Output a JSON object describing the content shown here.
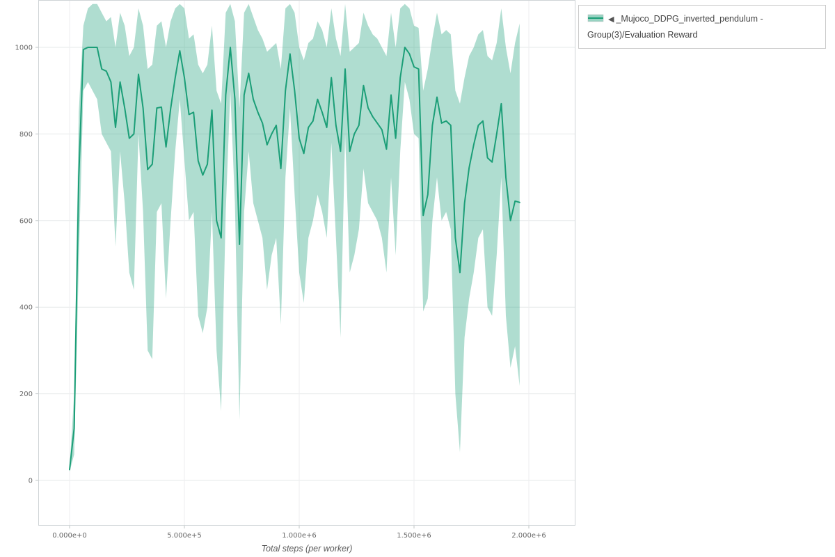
{
  "legend": {
    "toggle_icon": "◀",
    "label": "_Mujoco_DDPG_inverted_pendulum - Group(3)/Evaluation Reward"
  },
  "chart_data": {
    "type": "line",
    "title": "",
    "xlabel": "Total steps (per worker)",
    "ylabel": "",
    "xlim": [
      -136000,
      2200000
    ],
    "ylim": [
      -104,
      1110
    ],
    "grid": true,
    "legend_position": "top-right",
    "xticks": {
      "values": [
        0,
        500000,
        1000000,
        1500000,
        2000000
      ],
      "labels": [
        "0.000e+0",
        "5.000e+5",
        "1.000e+6",
        "1.500e+6",
        "2.000e+6"
      ]
    },
    "yticks": {
      "values": [
        0,
        200,
        400,
        600,
        800,
        1000
      ],
      "labels": [
        "0",
        "200",
        "400",
        "600",
        "800",
        "1000"
      ]
    },
    "series": [
      {
        "name": "_Mujoco_DDPG_inverted_pendulum - Group(3)/Evaluation Reward",
        "color": "#1b9e77",
        "band_opacity": 0.35,
        "x": [
          0,
          20000,
          40000,
          60000,
          80000,
          100000,
          120000,
          140000,
          160000,
          180000,
          200000,
          220000,
          240000,
          260000,
          280000,
          300000,
          320000,
          340000,
          360000,
          380000,
          400000,
          420000,
          440000,
          460000,
          480000,
          500000,
          520000,
          540000,
          560000,
          580000,
          600000,
          620000,
          640000,
          660000,
          680000,
          700000,
          720000,
          740000,
          760000,
          780000,
          800000,
          820000,
          840000,
          860000,
          880000,
          900000,
          920000,
          940000,
          960000,
          980000,
          1000000,
          1020000,
          1040000,
          1060000,
          1080000,
          1100000,
          1120000,
          1140000,
          1160000,
          1180000,
          1200000,
          1220000,
          1240000,
          1260000,
          1280000,
          1300000,
          1320000,
          1340000,
          1360000,
          1380000,
          1400000,
          1420000,
          1440000,
          1460000,
          1480000,
          1500000,
          1520000,
          1540000,
          1560000,
          1580000,
          1600000,
          1620000,
          1640000,
          1660000,
          1680000,
          1700000,
          1720000,
          1740000,
          1760000,
          1780000,
          1800000,
          1820000,
          1840000,
          1860000,
          1880000,
          1900000,
          1920000,
          1940000,
          1960000
        ],
        "y": [
          25,
          120,
          700,
          995,
          1000,
          1000,
          1000,
          950,
          945,
          920,
          815,
          920,
          860,
          790,
          800,
          938,
          860,
          718,
          730,
          860,
          862,
          770,
          858,
          930,
          992,
          930,
          845,
          850,
          738,
          705,
          730,
          855,
          600,
          560,
          890,
          1000,
          880,
          545,
          890,
          940,
          880,
          850,
          825,
          775,
          800,
          820,
          720,
          900,
          985,
          900,
          790,
          755,
          815,
          830,
          880,
          850,
          815,
          930,
          820,
          760,
          950,
          760,
          800,
          820,
          912,
          860,
          840,
          825,
          810,
          765,
          890,
          790,
          930,
          1000,
          985,
          955,
          950,
          612,
          660,
          820,
          885,
          825,
          830,
          820,
          560,
          480,
          640,
          722,
          775,
          820,
          830,
          745,
          735,
          800,
          870,
          700,
          600,
          645,
          642
        ],
        "y_lo": [
          20,
          60,
          500,
          900,
          920,
          900,
          880,
          800,
          780,
          760,
          540,
          760,
          640,
          480,
          440,
          800,
          620,
          300,
          280,
          620,
          640,
          420,
          600,
          760,
          880,
          740,
          600,
          620,
          380,
          340,
          400,
          620,
          300,
          160,
          620,
          900,
          640,
          140,
          620,
          760,
          640,
          600,
          560,
          440,
          520,
          560,
          360,
          700,
          860,
          660,
          480,
          410,
          560,
          600,
          660,
          620,
          560,
          780,
          560,
          330,
          800,
          480,
          520,
          580,
          720,
          640,
          620,
          600,
          560,
          480,
          700,
          520,
          760,
          920,
          880,
          800,
          790,
          390,
          420,
          600,
          700,
          600,
          620,
          580,
          200,
          65,
          330,
          420,
          480,
          560,
          580,
          400,
          380,
          520,
          700,
          380,
          260,
          310,
          218
        ],
        "y_hi": [
          30,
          200,
          850,
          1050,
          1090,
          1100,
          1100,
          1080,
          1060,
          1070,
          1000,
          1080,
          1050,
          980,
          1000,
          1090,
          1050,
          950,
          960,
          1050,
          1060,
          1000,
          1060,
          1090,
          1100,
          1090,
          1020,
          1030,
          960,
          940,
          960,
          1050,
          900,
          870,
          1080,
          1100,
          1060,
          860,
          1080,
          1100,
          1070,
          1040,
          1020,
          990,
          1000,
          1010,
          950,
          1090,
          1100,
          1080,
          1000,
          970,
          1010,
          1020,
          1060,
          1040,
          1000,
          1090,
          1020,
          980,
          1100,
          990,
          1000,
          1010,
          1080,
          1050,
          1030,
          1020,
          1000,
          980,
          1080,
          1000,
          1090,
          1100,
          1090,
          1050,
          1045,
          900,
          950,
          1020,
          1080,
          1030,
          1040,
          1030,
          900,
          870,
          930,
          980,
          1000,
          1030,
          1040,
          980,
          970,
          1010,
          1090,
          1000,
          940,
          1010,
          1055
        ]
      }
    ]
  }
}
